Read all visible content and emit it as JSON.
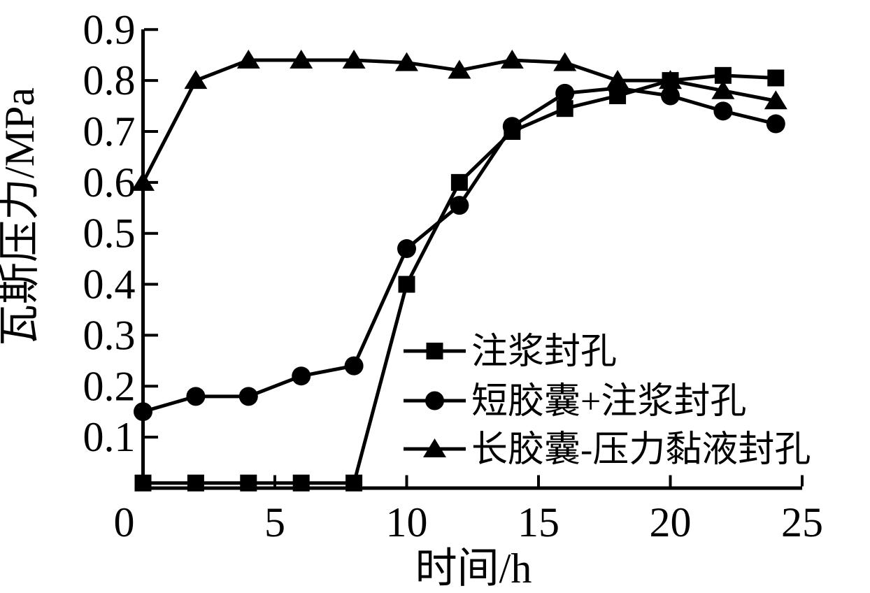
{
  "figure": {
    "background": "#ffffff",
    "ink_color": "#000000"
  },
  "chart_data": {
    "type": "line",
    "title": "",
    "xlabel": "时间/h",
    "ylabel": "瓦斯压力/MPa",
    "xlim": [
      0,
      25
    ],
    "ylim": [
      0,
      0.9
    ],
    "grid": false,
    "legend_position": "inside lower-right",
    "xticks": [
      0,
      5,
      10,
      15,
      20,
      25
    ],
    "xtick_labels": [
      "0",
      "5",
      "10",
      "15",
      "20",
      "25"
    ],
    "yticks": [
      0.1,
      0.2,
      0.3,
      0.4,
      0.5,
      0.6,
      0.7,
      0.8,
      0.9
    ],
    "ytick_labels": [
      "0.1",
      "0.2",
      "0.3",
      "0.4",
      "0.5",
      "0.6",
      "0.7",
      "0.8",
      "0.9"
    ],
    "x": [
      0,
      2,
      4,
      6,
      8,
      10,
      12,
      14,
      16,
      18,
      20,
      22,
      24
    ],
    "series": [
      {
        "name": "注浆封孔",
        "marker": "square",
        "color": "#000000",
        "values": [
          0.01,
          0.01,
          0.01,
          0.01,
          0.01,
          0.4,
          0.6,
          0.7,
          0.745,
          0.77,
          0.8,
          0.81,
          0.805
        ]
      },
      {
        "name": "短胶囊+注浆封孔",
        "marker": "circle",
        "color": "#000000",
        "values": [
          0.15,
          0.18,
          0.18,
          0.22,
          0.24,
          0.47,
          0.555,
          0.71,
          0.775,
          0.785,
          0.77,
          0.74,
          0.715
        ]
      },
      {
        "name": "长胶囊-压力黏液封孔",
        "marker": "triangle",
        "color": "#000000",
        "values": [
          0.6,
          0.8,
          0.84,
          0.84,
          0.84,
          0.835,
          0.82,
          0.84,
          0.835,
          0.8,
          0.8,
          0.78,
          0.76
        ]
      }
    ]
  }
}
